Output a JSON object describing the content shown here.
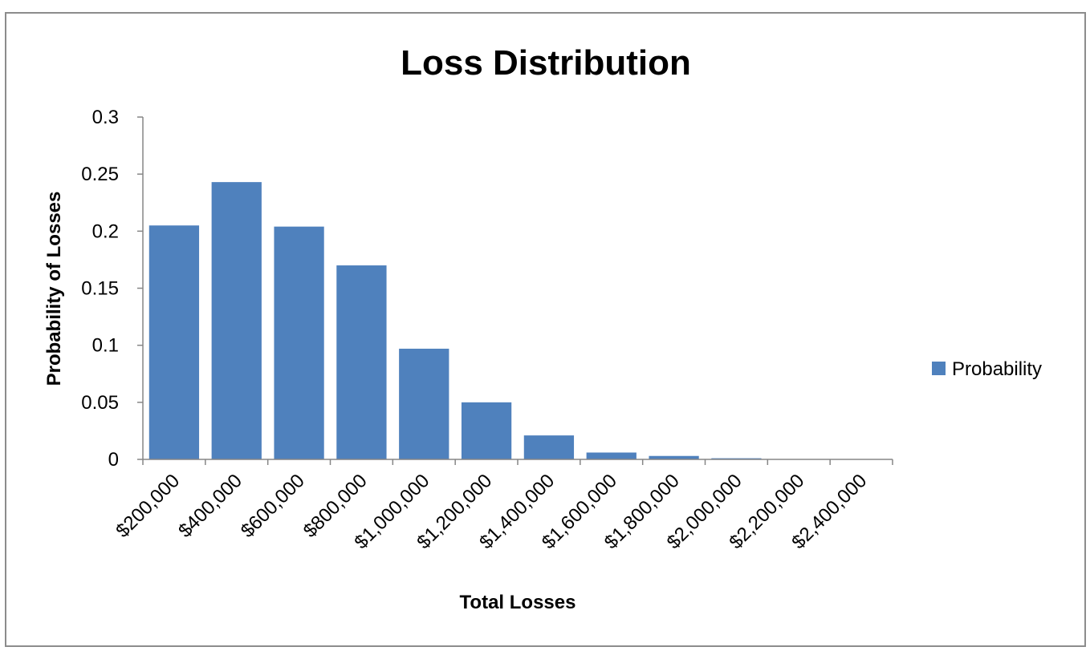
{
  "chart_data": {
    "type": "bar",
    "title": "Loss Distribution",
    "xlabel": "Total Losses",
    "ylabel": "Probability of Losses",
    "categories": [
      "$200,000",
      "$400,000",
      "$600,000",
      "$800,000",
      "$1,000,000",
      "$1,200,000",
      "$1,400,000",
      "$1,600,000",
      "$1,800,000",
      "$2,000,000",
      "$2,200,000",
      "$2,400,000"
    ],
    "series": [
      {
        "name": "Probability",
        "color": "#4f81bd",
        "values": [
          0.205,
          0.243,
          0.204,
          0.17,
          0.097,
          0.05,
          0.021,
          0.006,
          0.003,
          0.001,
          0.0003,
          0.0001
        ]
      }
    ],
    "ylim": [
      0,
      0.3
    ],
    "yticks": [
      0,
      0.05,
      0.1,
      0.15,
      0.2,
      0.25,
      0.3
    ],
    "ytick_labels": [
      "0",
      "0.05",
      "0.1",
      "0.15",
      "0.2",
      "0.25",
      "0.3"
    ],
    "grid": false,
    "legend": "right"
  }
}
